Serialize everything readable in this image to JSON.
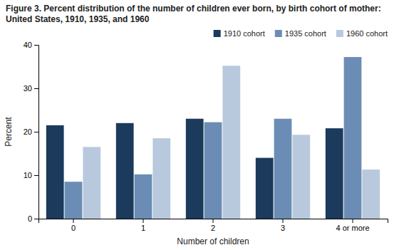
{
  "chart_data": {
    "type": "bar",
    "title": "Figure 3. Percent distribution of the number of children ever born, by birth cohort of mother: United States, 1910, 1935, and 1960",
    "x_label": "Number of children",
    "y_label": "Percent",
    "categories": [
      "0",
      "1",
      "2",
      "3",
      "4 or more"
    ],
    "series": [
      {
        "name": "1910 cohort",
        "color": "#1b3a5c",
        "values": [
          21.5,
          22.0,
          23.0,
          14.0,
          20.8
        ]
      },
      {
        "name": "1935 cohort",
        "color": "#6b8db5",
        "values": [
          8.5,
          10.2,
          22.2,
          23.0,
          37.2
        ]
      },
      {
        "name": "1960 cohort",
        "color": "#b8c9dd",
        "values": [
          16.5,
          18.5,
          35.2,
          19.3,
          11.3
        ]
      }
    ],
    "ylim": [
      0,
      40
    ],
    "yticks": [
      0,
      10,
      20,
      30,
      40
    ],
    "legend": "upper right",
    "grid": false
  }
}
